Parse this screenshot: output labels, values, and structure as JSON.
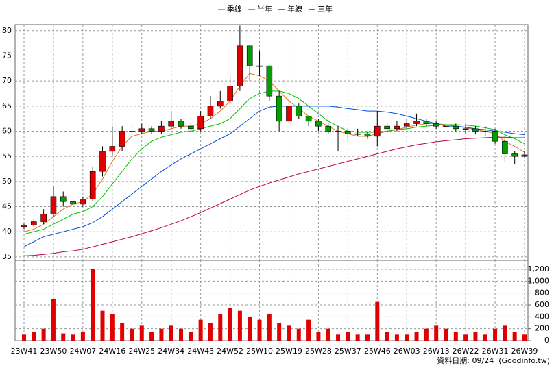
{
  "chart_data": [
    {
      "type": "candlestick",
      "categories": [
        "23W41",
        null,
        null,
        "23W50",
        null,
        null,
        "24W07",
        null,
        null,
        "24W16",
        null,
        null,
        "24W25",
        null,
        null,
        "24W34",
        null,
        null,
        "24W43",
        null,
        null,
        "24W52",
        null,
        null,
        "25W10",
        null,
        null,
        "25W19",
        null,
        null,
        "25W28",
        null,
        null,
        "25W37",
        null,
        null,
        "25W46",
        null,
        null,
        "26W03",
        null,
        null,
        "26W13",
        null,
        null,
        "26W22",
        null,
        null,
        "26W31",
        null,
        null,
        "26W39"
      ],
      "open": [
        41,
        41.3,
        42,
        43.5,
        47,
        46,
        45.5,
        46.5,
        52,
        56,
        57,
        60,
        60,
        60.5,
        60,
        61,
        62,
        61,
        60.5,
        63,
        65,
        66,
        69,
        77,
        73,
        73,
        67,
        62,
        65,
        63,
        62,
        61,
        60,
        60,
        59.5,
        59.5,
        59,
        61,
        60.5,
        61,
        61.5,
        62,
        61.5,
        61,
        61,
        60.5,
        60.5,
        60,
        60,
        58,
        55.5,
        55
      ],
      "high": [
        41.6,
        42.5,
        44.5,
        49,
        48,
        46.5,
        47,
        53,
        57,
        61,
        61,
        61.5,
        61.5,
        61,
        62,
        64,
        62.5,
        61.5,
        64,
        67,
        68,
        71,
        81,
        77,
        76,
        73,
        68,
        67,
        65.5,
        63,
        62.5,
        61.5,
        61,
        60.5,
        60.5,
        60,
        64,
        61.5,
        62,
        62.5,
        63.5,
        62.5,
        62,
        62,
        61.5,
        61.5,
        61,
        61,
        60.5,
        59,
        56,
        56
      ],
      "low": [
        40.5,
        41,
        41.5,
        43,
        45,
        45,
        45,
        46,
        51,
        55,
        56,
        59,
        59.5,
        59.5,
        59.5,
        60.5,
        60.5,
        60,
        60,
        62.5,
        64.5,
        65.5,
        68,
        70,
        71,
        66,
        60,
        61.5,
        62.5,
        61,
        60,
        59.5,
        56,
        58.5,
        59,
        58.5,
        57,
        60,
        60,
        60.5,
        61,
        61,
        60.5,
        60,
        60,
        59.5,
        59.5,
        59,
        57.5,
        54,
        53.5,
        54.8
      ],
      "close": [
        41.3,
        42,
        43.5,
        47,
        46,
        45.5,
        46.5,
        52,
        56,
        57,
        60,
        60,
        60.5,
        60,
        61,
        62,
        61,
        60.5,
        63,
        65,
        66,
        69,
        77,
        73,
        73,
        67,
        62,
        65,
        63,
        62,
        61,
        60,
        60,
        59.5,
        59.5,
        59,
        61,
        60.5,
        61,
        61.5,
        62,
        61.5,
        61,
        61,
        60.5,
        60.5,
        60,
        60,
        58,
        55.5,
        55,
        55.3
      ],
      "up_color": "#e00000",
      "down_color": "#00a000",
      "series": [
        {
          "name": "季線",
          "color": "#e07020",
          "values": [
            40,
            40.5,
            41.5,
            43,
            44.5,
            45.5,
            46,
            47.5,
            50.5,
            54,
            57,
            59,
            59.5,
            60,
            60,
            60.5,
            61,
            61,
            61.5,
            62.5,
            64,
            66,
            69,
            71.5,
            71,
            70,
            68,
            66,
            64.5,
            63,
            62,
            61,
            60,
            59.5,
            59,
            59,
            59.5,
            60,
            60.3,
            60.8,
            61.2,
            61.5,
            61.5,
            61.3,
            61,
            60.7,
            60.3,
            60,
            59.5,
            58,
            57,
            55.8
          ]
        },
        {
          "name": "半年",
          "color": "#00c000",
          "values": [
            39.5,
            40,
            40.5,
            41.5,
            42.5,
            43.5,
            44,
            45,
            47,
            49.5,
            52,
            54.5,
            56.5,
            58,
            58.8,
            59.3,
            59.8,
            60,
            60.5,
            61,
            61.5,
            62.5,
            64.5,
            66.5,
            67.5,
            68,
            68,
            67.5,
            66.5,
            65,
            63.5,
            62,
            61,
            60,
            59.8,
            59.8,
            59.8,
            60,
            60.3,
            60.5,
            60.8,
            61,
            61.2,
            61.3,
            61.3,
            61.2,
            61,
            60.7,
            60.3,
            59.3,
            58.5,
            57.5
          ]
        },
        {
          "name": "年線",
          "color": "#0050e0",
          "values": [
            37,
            38,
            39,
            39.5,
            40,
            40.5,
            41,
            41.8,
            43,
            44.5,
            46,
            47.5,
            49,
            50.5,
            52,
            53.3,
            54.5,
            55.5,
            56.5,
            57.5,
            58.5,
            59.5,
            61,
            62.5,
            64,
            64.8,
            65,
            65,
            65,
            65,
            65,
            65,
            64.8,
            64.5,
            64.3,
            64,
            64,
            63.8,
            63.5,
            63,
            62.5,
            62,
            61.5,
            61,
            61,
            60.8,
            60.5,
            60.3,
            60,
            59.8,
            59.5,
            59.3
          ]
        },
        {
          "name": "三年",
          "color": "#c00040",
          "values": [
            35.2,
            35.3,
            35.5,
            35.7,
            36,
            36.2,
            36.5,
            37,
            37.5,
            38,
            38.5,
            39,
            39.6,
            40.2,
            40.8,
            41.5,
            42.2,
            43,
            43.8,
            44.7,
            45.6,
            46.5,
            47.4,
            48.3,
            49,
            49.7,
            50.3,
            50.9,
            51.5,
            52,
            52.5,
            53,
            53.5,
            54,
            54.5,
            55,
            55.5,
            56,
            56.5,
            56.9,
            57.3,
            57.6,
            57.9,
            58.1,
            58.3,
            58.5,
            58.6,
            58.7,
            58.8,
            58.8,
            58.7,
            58.7
          ]
        }
      ],
      "ylim": [
        34.3,
        81.2
      ],
      "yticks": [
        35,
        40,
        45,
        50,
        55,
        60,
        65,
        70,
        75,
        80
      ],
      "grid": true,
      "source": "資料日期: 09/24  (Goodinfo.tw)"
    },
    {
      "type": "bar",
      "color": "#e00000",
      "values": [
        100,
        150,
        200,
        700,
        120,
        100,
        150,
        1200,
        500,
        450,
        300,
        200,
        250,
        150,
        200,
        250,
        200,
        150,
        350,
        300,
        450,
        550,
        500,
        400,
        350,
        450,
        300,
        250,
        200,
        350,
        150,
        200,
        100,
        150,
        100,
        100,
        650,
        150,
        100,
        100,
        150,
        200,
        250,
        200,
        150,
        100,
        150,
        100,
        200,
        250,
        150,
        100
      ],
      "ylim": [
        0,
        1350
      ],
      "yticks": [
        0,
        200,
        400,
        600,
        800,
        {
          "value": 1000,
          "label": "1,000"
        },
        {
          "value": 1200,
          "label": "1,200"
        }
      ],
      "grid": true
    }
  ]
}
